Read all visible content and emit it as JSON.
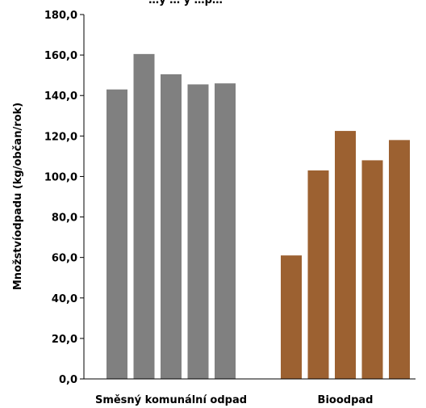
{
  "chart_data": {
    "type": "bar",
    "title": "…ý … ý …p…",
    "ylabel": "Množstvíodpadu (kg/občan/rok)",
    "xlabel": "",
    "ylim": [
      0,
      180
    ],
    "ytick_labels": [
      "0,0",
      "20,0",
      "40,0",
      "60,0",
      "80,0",
      "100,0",
      "120,0",
      "140,0",
      "160,0",
      "180,0"
    ],
    "grid": false,
    "legend": "none",
    "groups": [
      {
        "category": "Směsný komunální odpad",
        "color": "#808080",
        "values": [
          143,
          160.5,
          150.5,
          145.5,
          146
        ]
      },
      {
        "category": "Bioodpad",
        "color": "#9c6131",
        "values": [
          61,
          103,
          122.5,
          108,
          118
        ]
      }
    ]
  }
}
